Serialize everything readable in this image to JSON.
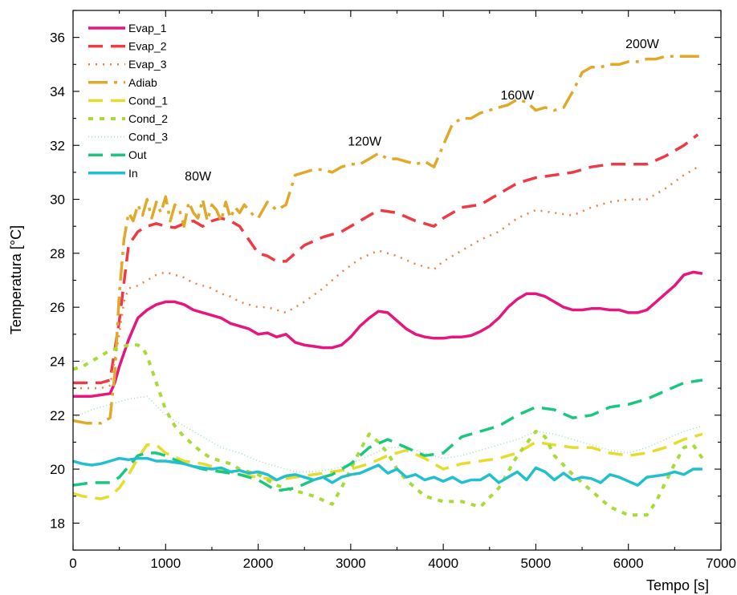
{
  "chart_data": {
    "type": "line",
    "xlabel": "Tempo [s]",
    "ylabel": "Temperatura [°C]",
    "xlim": [
      0,
      7000
    ],
    "ylim": [
      17,
      37
    ],
    "xticks": [
      0,
      1000,
      2000,
      3000,
      4000,
      5000,
      6000,
      7000
    ],
    "yticks": [
      18,
      20,
      22,
      24,
      26,
      28,
      30,
      32,
      34,
      36
    ],
    "grid": false,
    "legend": "top-left",
    "annotations": [
      {
        "text": "80W",
        "x": 1350,
        "y": 30.7
      },
      {
        "text": "120W",
        "x": 3150,
        "y": 32.0
      },
      {
        "text": "160W",
        "x": 4800,
        "y": 33.7
      },
      {
        "text": "200W",
        "x": 6150,
        "y": 35.6
      }
    ],
    "series": [
      {
        "name": "Evap_1",
        "color": "#E6167F",
        "style": "solid",
        "x": [
          0,
          200,
          300,
          400,
          450,
          500,
          600,
          700,
          800,
          900,
          1000,
          1100,
          1200,
          1300,
          1400,
          1500,
          1600,
          1700,
          1800,
          1900,
          2000,
          2100,
          2200,
          2300,
          2400,
          2500,
          2600,
          2700,
          2800,
          2900,
          3000,
          3100,
          3200,
          3300,
          3400,
          3500,
          3600,
          3700,
          3800,
          3900,
          4000,
          4100,
          4200,
          4300,
          4400,
          4500,
          4600,
          4700,
          4800,
          4900,
          5000,
          5100,
          5200,
          5300,
          5400,
          5500,
          5600,
          5700,
          5800,
          5900,
          6000,
          6100,
          6200,
          6300,
          6400,
          6500,
          6600,
          6700,
          6800
        ],
        "y": [
          22.7,
          22.7,
          22.75,
          22.8,
          23.2,
          23.8,
          24.8,
          25.6,
          25.9,
          26.1,
          26.2,
          26.2,
          26.1,
          25.9,
          25.8,
          25.7,
          25.6,
          25.4,
          25.3,
          25.2,
          25.0,
          25.05,
          24.9,
          25.0,
          24.7,
          24.6,
          24.55,
          24.5,
          24.5,
          24.6,
          24.9,
          25.3,
          25.6,
          25.85,
          25.8,
          25.5,
          25.2,
          25.0,
          24.9,
          24.85,
          24.85,
          24.9,
          24.9,
          24.95,
          25.1,
          25.3,
          25.6,
          26.0,
          26.3,
          26.5,
          26.5,
          26.4,
          26.2,
          26.0,
          25.9,
          25.9,
          25.95,
          25.95,
          25.9,
          25.9,
          25.8,
          25.8,
          25.9,
          26.2,
          26.5,
          26.8,
          27.2,
          27.3,
          27.25
        ]
      },
      {
        "name": "Evap_2",
        "color": "#EE3A45",
        "style": "dashed",
        "x": [
          0,
          150,
          300,
          400,
          500,
          550,
          600,
          700,
          800,
          900,
          1000,
          1100,
          1200,
          1300,
          1400,
          1500,
          1600,
          1700,
          1800,
          1900,
          2000,
          2100,
          2200,
          2300,
          2500,
          2700,
          2900,
          3100,
          3300,
          3500,
          3700,
          3900,
          4000,
          4200,
          4400,
          4600,
          4800,
          5000,
          5200,
          5400,
          5600,
          5800,
          6000,
          6200,
          6400,
          6600,
          6750
        ],
        "y": [
          23.2,
          23.2,
          23.2,
          23.3,
          25.5,
          26.9,
          28.3,
          28.8,
          29.0,
          29.1,
          29.0,
          28.95,
          29.1,
          29.2,
          29.0,
          29.2,
          29.3,
          29.2,
          29.0,
          28.5,
          28.0,
          27.9,
          27.7,
          27.7,
          28.3,
          28.6,
          28.8,
          29.2,
          29.6,
          29.5,
          29.2,
          29.0,
          29.3,
          29.7,
          29.8,
          30.2,
          30.6,
          30.8,
          30.9,
          31.0,
          31.2,
          31.3,
          31.3,
          31.3,
          31.6,
          32.0,
          32.4
        ]
      },
      {
        "name": "Evap_3",
        "color": "#F08040",
        "style": "dotted",
        "x": [
          0,
          150,
          300,
          400,
          500,
          550,
          600,
          700,
          800,
          900,
          1000,
          1100,
          1200,
          1300,
          1400,
          1500,
          1600,
          1700,
          1800,
          1900,
          2000,
          2100,
          2200,
          2300,
          2500,
          2700,
          2900,
          3100,
          3300,
          3500,
          3700,
          3900,
          4000,
          4200,
          4400,
          4600,
          4800,
          5000,
          5200,
          5400,
          5600,
          5800,
          6000,
          6200,
          6400,
          6600,
          6750
        ],
        "y": [
          23.0,
          23.0,
          23.0,
          23.1,
          25.0,
          26.2,
          26.7,
          26.8,
          27.0,
          27.2,
          27.3,
          27.2,
          27.1,
          26.9,
          26.8,
          26.7,
          26.5,
          26.4,
          26.2,
          26.1,
          26.0,
          26.0,
          25.9,
          25.8,
          26.2,
          26.7,
          27.3,
          27.8,
          28.1,
          27.9,
          27.6,
          27.4,
          27.7,
          28.1,
          28.5,
          28.8,
          29.3,
          29.6,
          29.5,
          29.4,
          29.7,
          29.9,
          30.0,
          30.0,
          30.4,
          30.9,
          31.2
        ]
      },
      {
        "name": "Adiab",
        "color": "#E0A92A",
        "style": "longdash",
        "x": [
          0,
          150,
          300,
          400,
          450,
          500,
          550,
          600,
          650,
          700,
          750,
          800,
          850,
          900,
          950,
          1000,
          1050,
          1100,
          1150,
          1200,
          1250,
          1300,
          1350,
          1400,
          1450,
          1500,
          1550,
          1600,
          1650,
          1700,
          1750,
          1800,
          1850,
          1900,
          1950,
          2000,
          2100,
          2200,
          2300,
          2400,
          2500,
          2600,
          2700,
          2800,
          2900,
          3000,
          3100,
          3200,
          3300,
          3400,
          3500,
          3600,
          3700,
          3800,
          3900,
          4000,
          4100,
          4200,
          4300,
          4400,
          4500,
          4600,
          4700,
          4800,
          4900,
          5000,
          5100,
          5200,
          5300,
          5400,
          5500,
          5600,
          5700,
          5800,
          5900,
          6000,
          6100,
          6200,
          6300,
          6400,
          6500,
          6600,
          6700,
          6800
        ],
        "y": [
          21.8,
          21.7,
          21.7,
          21.9,
          23.5,
          26.5,
          28.5,
          29.5,
          29.2,
          29.8,
          29.4,
          30.0,
          29.3,
          29.9,
          29.5,
          30.1,
          29.2,
          29.8,
          29.6,
          29.0,
          29.9,
          29.5,
          29.3,
          30.0,
          29.2,
          29.8,
          29.6,
          29.2,
          29.9,
          29.3,
          29.7,
          29.5,
          29.8,
          29.6,
          29.4,
          29.3,
          29.9,
          29.6,
          29.8,
          30.9,
          31.0,
          31.1,
          31.1,
          31.0,
          31.2,
          31.3,
          31.3,
          31.5,
          31.7,
          31.5,
          31.5,
          31.4,
          31.3,
          31.4,
          31.2,
          32.0,
          32.8,
          33.0,
          33.0,
          33.2,
          33.3,
          33.4,
          33.5,
          33.7,
          33.6,
          33.3,
          33.4,
          33.3,
          33.4,
          34.0,
          34.7,
          34.9,
          34.9,
          35.0,
          35.0,
          35.1,
          35.1,
          35.2,
          35.2,
          35.3,
          35.3,
          35.3,
          35.3,
          35.3
        ]
      },
      {
        "name": "Cond_1",
        "color": "#E6DC2C",
        "style": "dashed",
        "x": [
          0,
          100,
          200,
          300,
          400,
          500,
          600,
          700,
          800,
          900,
          1000,
          1200,
          1400,
          1600,
          1800,
          2000,
          2200,
          2400,
          2600,
          2800,
          3000,
          3200,
          3400,
          3600,
          3800,
          4000,
          4200,
          4400,
          4600,
          4800,
          5000,
          5200,
          5400,
          5600,
          5800,
          6000,
          6200,
          6400,
          6600,
          6800
        ],
        "y": [
          19.1,
          19.0,
          18.95,
          18.9,
          19.0,
          19.3,
          19.8,
          20.4,
          20.9,
          20.9,
          20.6,
          20.3,
          20.2,
          20.0,
          19.8,
          19.7,
          19.6,
          19.7,
          19.8,
          19.9,
          20.0,
          20.2,
          20.5,
          20.7,
          20.4,
          20.0,
          20.2,
          20.3,
          20.4,
          20.6,
          21.0,
          20.9,
          20.8,
          20.8,
          20.6,
          20.5,
          20.6,
          20.8,
          21.1,
          21.3
        ]
      },
      {
        "name": "Cond_2",
        "color": "#A6DC35",
        "style": "shortdash",
        "x": [
          0,
          100,
          200,
          300,
          400,
          500,
          600,
          700,
          750,
          800,
          900,
          1000,
          1100,
          1200,
          1300,
          1400,
          1500,
          1600,
          1700,
          1800,
          1900,
          2000,
          2200,
          2400,
          2600,
          2800,
          2900,
          3000,
          3100,
          3200,
          3300,
          3400,
          3500,
          3600,
          3700,
          3800,
          3900,
          4000,
          4200,
          4400,
          4600,
          4800,
          5000,
          5100,
          5200,
          5400,
          5600,
          5800,
          6000,
          6200,
          6300,
          6400,
          6500,
          6600,
          6700,
          6800
        ],
        "y": [
          23.7,
          23.8,
          24.0,
          24.2,
          24.4,
          24.5,
          24.6,
          24.6,
          24.5,
          24.2,
          23.2,
          22.2,
          21.6,
          21.2,
          20.9,
          20.6,
          20.4,
          20.3,
          20.2,
          20.0,
          19.9,
          19.8,
          19.4,
          19.2,
          19.0,
          18.7,
          19.3,
          20.0,
          20.7,
          21.3,
          21.0,
          20.6,
          20.0,
          19.6,
          19.3,
          19.0,
          18.9,
          18.8,
          18.8,
          18.6,
          19.3,
          20.5,
          21.4,
          21.2,
          20.5,
          19.8,
          19.2,
          18.6,
          18.3,
          18.3,
          18.8,
          19.5,
          20.2,
          20.8,
          20.9,
          20.4
        ]
      },
      {
        "name": "Cond_3",
        "color": "#9CE0B8",
        "style": "fine-dotted",
        "x": [
          0,
          200,
          400,
          600,
          800,
          1000,
          1200,
          1400,
          1600,
          1800,
          2000,
          2200,
          2400,
          2600,
          2800,
          3000,
          3200,
          3400,
          3600,
          3800,
          4000,
          4200,
          4400,
          4600,
          4800,
          5000,
          5200,
          5400,
          5600,
          5800,
          6000,
          6200,
          6400,
          6600,
          6800
        ],
        "y": [
          21.9,
          22.2,
          22.4,
          22.6,
          22.7,
          22.0,
          21.6,
          21.2,
          20.8,
          20.6,
          20.3,
          20.1,
          19.9,
          19.9,
          20.0,
          20.2,
          20.5,
          20.8,
          20.8,
          20.6,
          20.4,
          20.5,
          20.7,
          20.9,
          21.1,
          21.4,
          21.3,
          21.1,
          20.9,
          20.7,
          20.6,
          20.8,
          21.1,
          21.4,
          21.6
        ]
      },
      {
        "name": "Out",
        "color": "#1BC77F",
        "style": "dashed",
        "x": [
          0,
          200,
          400,
          500,
          600,
          700,
          800,
          900,
          1000,
          1200,
          1400,
          1600,
          1800,
          2000,
          2200,
          2400,
          2600,
          2800,
          3000,
          3200,
          3400,
          3600,
          3800,
          4000,
          4200,
          4400,
          4600,
          4800,
          5000,
          5200,
          5400,
          5600,
          5800,
          6000,
          6200,
          6400,
          6600,
          6800
        ],
        "y": [
          19.4,
          19.5,
          19.5,
          19.7,
          20.1,
          20.5,
          20.6,
          20.6,
          20.5,
          20.2,
          20.0,
          19.9,
          19.8,
          19.6,
          19.2,
          19.3,
          19.6,
          19.8,
          20.2,
          20.8,
          21.1,
          20.8,
          20.5,
          20.6,
          21.2,
          21.4,
          21.6,
          22.0,
          22.3,
          22.2,
          21.9,
          22.0,
          22.3,
          22.4,
          22.6,
          22.9,
          23.2,
          23.3
        ]
      },
      {
        "name": "In",
        "color": "#22BFCF",
        "style": "solid",
        "x": [
          0,
          100,
          200,
          300,
          400,
          500,
          600,
          700,
          800,
          900,
          1000,
          1100,
          1200,
          1300,
          1400,
          1500,
          1600,
          1700,
          1800,
          1900,
          2000,
          2100,
          2200,
          2300,
          2400,
          2500,
          2600,
          2700,
          2800,
          2900,
          3000,
          3100,
          3200,
          3300,
          3400,
          3500,
          3600,
          3700,
          3800,
          3900,
          4000,
          4100,
          4200,
          4300,
          4400,
          4500,
          4600,
          4700,
          4800,
          4900,
          5000,
          5100,
          5200,
          5300,
          5400,
          5500,
          5600,
          5700,
          5800,
          5900,
          6000,
          6100,
          6200,
          6300,
          6400,
          6500,
          6600,
          6700,
          6800
        ],
        "y": [
          20.3,
          20.2,
          20.15,
          20.2,
          20.3,
          20.4,
          20.35,
          20.4,
          20.4,
          20.3,
          20.3,
          20.25,
          20.2,
          20.1,
          20.05,
          20.0,
          20.05,
          19.9,
          19.95,
          19.85,
          19.9,
          19.8,
          19.6,
          19.75,
          19.8,
          19.7,
          19.6,
          19.7,
          19.5,
          19.7,
          19.8,
          19.85,
          20.0,
          20.15,
          19.85,
          20.0,
          19.7,
          19.8,
          19.6,
          19.7,
          19.55,
          19.7,
          19.5,
          19.6,
          19.6,
          19.8,
          19.5,
          19.7,
          19.9,
          19.6,
          20.05,
          19.9,
          19.6,
          19.85,
          19.6,
          19.7,
          19.65,
          19.5,
          19.8,
          19.7,
          19.55,
          19.4,
          19.7,
          19.75,
          19.8,
          19.9,
          19.8,
          20.0,
          20.0
        ]
      }
    ]
  }
}
